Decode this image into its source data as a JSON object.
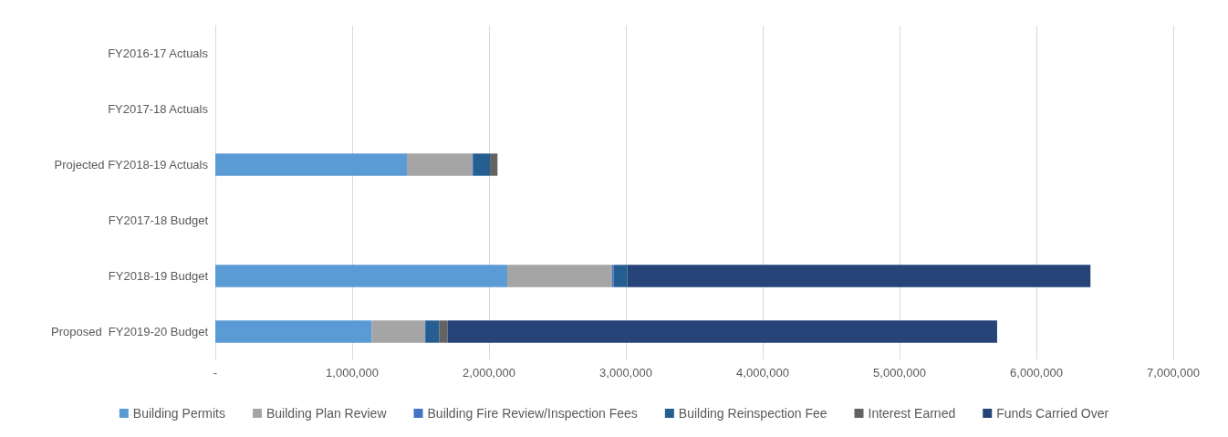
{
  "chart_data": {
    "type": "bar",
    "orientation": "horizontal",
    "stacked": true,
    "categories": [
      "FY2016-17 Actuals",
      "FY2017-18 Actuals",
      "Projected FY2018-19 Actuals",
      "FY2017-18 Budget",
      "FY2018-19 Budget",
      "Proposed  FY2019-20 Budget"
    ],
    "series": [
      {
        "name": "Building Permits",
        "color": "#5b9bd5",
        "values": [
          null,
          null,
          1400000,
          null,
          2133000,
          1142000
        ]
      },
      {
        "name": "Building Plan Review",
        "color": "#a5a5a5",
        "values": [
          null,
          null,
          478000,
          null,
          765000,
          391000
        ]
      },
      {
        "name": "Building Fire Review/Inspection Fees",
        "color": "#4472c4",
        "values": [
          null,
          null,
          8000,
          null,
          13000,
          7000
        ]
      },
      {
        "name": "Building Reinspection Fee",
        "color": "#255e91",
        "values": [
          null,
          null,
          121000,
          null,
          100000,
          95000
        ]
      },
      {
        "name": "Interest Earned",
        "color": "#636363",
        "values": [
          null,
          null,
          55000,
          null,
          null,
          63000
        ]
      },
      {
        "name": "Funds Carried Over",
        "color": "#264478",
        "values": [
          null,
          null,
          null,
          null,
          3384000,
          4015000
        ]
      }
    ],
    "xlim": [
      0,
      7000000
    ],
    "xticks": [
      {
        "value": 0,
        "label": "-"
      },
      {
        "value": 1000000,
        "label": "1,000,000"
      },
      {
        "value": 2000000,
        "label": "2,000,000"
      },
      {
        "value": 3000000,
        "label": "3,000,000"
      },
      {
        "value": 4000000,
        "label": "4,000,000"
      },
      {
        "value": 5000000,
        "label": "5,000,000"
      },
      {
        "value": 6000000,
        "label": "6,000,000"
      },
      {
        "value": 7000000,
        "label": "7,000,000"
      }
    ],
    "grid": "x",
    "legend": "bottom"
  }
}
